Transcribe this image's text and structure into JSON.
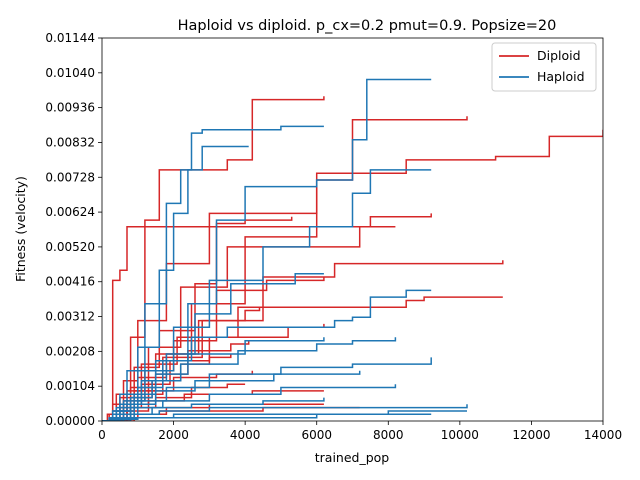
{
  "chart_data": {
    "type": "line",
    "title": "Haploid vs diploid. p_cx=0.2 pmut=0.9. Popsize=20",
    "xlabel": "trained_pop",
    "ylabel": "Fitness (velocity)",
    "xlim": [
      0,
      14000
    ],
    "ylim": [
      0,
      0.01144
    ],
    "xticks": [
      0,
      2000,
      4000,
      6000,
      8000,
      10000,
      12000,
      14000
    ],
    "xtick_labels": [
      "0",
      "2000",
      "4000",
      "6000",
      "8000",
      "10000",
      "12000",
      "14000"
    ],
    "yticks": [
      0,
      0.00104,
      0.00208,
      0.00312,
      0.00416,
      0.0052,
      0.00624,
      0.00728,
      0.00832,
      0.00936,
      0.0104,
      0.01144
    ],
    "ytick_labels": [
      "0.00000",
      "0.00104",
      "0.00208",
      "0.00312",
      "0.00416",
      "0.00520",
      "0.00624",
      "0.00728",
      "0.00832",
      "0.00936",
      "0.01040",
      "0.01144"
    ],
    "legend_position": "top-right",
    "colors": {
      "Diploid": "#d62728",
      "Haploid": "#1f77b4"
    },
    "series": [
      {
        "name": "Diploid",
        "values": [
          [
            0,
            0
          ],
          [
            150,
            0.0002
          ],
          [
            300,
            0.0042
          ],
          [
            500,
            0.0045
          ],
          [
            700,
            0.0058
          ],
          [
            8200,
            0.0058
          ]
        ]
      },
      {
        "name": "Diploid",
        "values": [
          [
            0,
            0
          ],
          [
            400,
            0.0008
          ],
          [
            800,
            0.0025
          ],
          [
            1200,
            0.006
          ],
          [
            1600,
            0.0075
          ],
          [
            3500,
            0.0078
          ],
          [
            4200,
            0.0096
          ],
          [
            6200,
            0.0097
          ]
        ]
      },
      {
        "name": "Diploid",
        "values": [
          [
            0,
            0
          ],
          [
            600,
            0.0012
          ],
          [
            1000,
            0.003
          ],
          [
            1800,
            0.0047
          ],
          [
            3000,
            0.0062
          ],
          [
            6000,
            0.0072
          ],
          [
            7000,
            0.009
          ],
          [
            10200,
            0.0091
          ]
        ]
      },
      {
        "name": "Diploid",
        "values": [
          [
            0,
            0
          ],
          [
            800,
            0.001
          ],
          [
            1500,
            0.002
          ],
          [
            2500,
            0.0035
          ],
          [
            4000,
            0.0055
          ],
          [
            6000,
            0.0074
          ],
          [
            8500,
            0.0078
          ],
          [
            11000,
            0.0079
          ],
          [
            12500,
            0.0085
          ],
          [
            14000,
            0.0087
          ]
        ]
      },
      {
        "name": "Diploid",
        "values": [
          [
            0,
            0
          ],
          [
            700,
            0.0009
          ],
          [
            1300,
            0.0022
          ],
          [
            2200,
            0.004
          ],
          [
            3500,
            0.0052
          ],
          [
            7200,
            0.0058
          ],
          [
            7500,
            0.0061
          ],
          [
            9200,
            0.0062
          ]
        ]
      },
      {
        "name": "Diploid",
        "values": [
          [
            0,
            0
          ],
          [
            900,
            0.0008
          ],
          [
            1700,
            0.0019
          ],
          [
            2800,
            0.003
          ],
          [
            4500,
            0.0043
          ],
          [
            6500,
            0.0047
          ],
          [
            11200,
            0.0048
          ]
        ]
      },
      {
        "name": "Diploid",
        "values": [
          [
            0,
            0
          ],
          [
            500,
            0.0007
          ],
          [
            1100,
            0.0017
          ],
          [
            2100,
            0.0025
          ],
          [
            3800,
            0.0034
          ],
          [
            8500,
            0.0036
          ],
          [
            9000,
            0.0037
          ],
          [
            11200,
            0.0037
          ]
        ]
      },
      {
        "name": "Diploid",
        "values": [
          [
            0,
            0
          ],
          [
            300,
            0.0005
          ],
          [
            900,
            0.0016
          ],
          [
            1600,
            0.0027
          ],
          [
            2600,
            0.0041
          ],
          [
            3200,
            0.0059
          ],
          [
            4000,
            0.006
          ],
          [
            5300,
            0.0061
          ]
        ]
      },
      {
        "name": "Diploid",
        "values": [
          [
            0,
            0
          ],
          [
            600,
            0.0006
          ],
          [
            1200,
            0.0015
          ],
          [
            2000,
            0.0024
          ],
          [
            3200,
            0.0039
          ],
          [
            4600,
            0.0042
          ],
          [
            6200,
            0.0043
          ]
        ]
      },
      {
        "name": "Diploid",
        "values": [
          [
            0,
            0
          ],
          [
            400,
            0.0005
          ],
          [
            1000,
            0.0013
          ],
          [
            1800,
            0.002
          ],
          [
            2700,
            0.003
          ],
          [
            4000,
            0.0033
          ],
          [
            4400,
            0.0034
          ]
        ]
      },
      {
        "name": "Diploid",
        "values": [
          [
            0,
            0
          ],
          [
            500,
            0.0004
          ],
          [
            1100,
            0.0011
          ],
          [
            1900,
            0.0018
          ],
          [
            3000,
            0.0025
          ],
          [
            5200,
            0.0028
          ],
          [
            6200,
            0.0029
          ]
        ]
      },
      {
        "name": "Diploid",
        "values": [
          [
            0,
            0
          ],
          [
            400,
            0.0003
          ],
          [
            900,
            0.0009
          ],
          [
            1500,
            0.0014
          ],
          [
            2400,
            0.0021
          ],
          [
            3600,
            0.0023
          ],
          [
            4100,
            0.0024
          ]
        ]
      },
      {
        "name": "Diploid",
        "values": [
          [
            0,
            0
          ],
          [
            300,
            0.0003
          ],
          [
            800,
            0.0007
          ],
          [
            1400,
            0.0012
          ],
          [
            2200,
            0.0017
          ],
          [
            3000,
            0.0019
          ],
          [
            3600,
            0.002
          ]
        ]
      },
      {
        "name": "Diploid",
        "values": [
          [
            0,
            0
          ],
          [
            200,
            0.0002
          ],
          [
            700,
            0.0005
          ],
          [
            1300,
            0.0009
          ],
          [
            2000,
            0.0013
          ],
          [
            3200,
            0.0014
          ],
          [
            4200,
            0.0015
          ]
        ]
      },
      {
        "name": "Diploid",
        "values": [
          [
            0,
            0
          ],
          [
            300,
            0.0002
          ],
          [
            800,
            0.0004
          ],
          [
            1500,
            0.0007
          ],
          [
            2500,
            0.001
          ],
          [
            3500,
            0.0011
          ],
          [
            4000,
            0.0011
          ]
        ]
      },
      {
        "name": "Diploid",
        "values": [
          [
            0,
            0
          ],
          [
            200,
            0.0001
          ],
          [
            700,
            0.0003
          ],
          [
            1300,
            0.0006
          ],
          [
            2300,
            0.0008
          ],
          [
            4200,
            0.0009
          ],
          [
            6200,
            0.0009
          ]
        ]
      },
      {
        "name": "Diploid",
        "values": [
          [
            0,
            0
          ],
          [
            400,
            0.0001
          ],
          [
            1000,
            0.0002
          ],
          [
            1800,
            0.0004
          ],
          [
            3000,
            0.0005
          ],
          [
            5000,
            0.0005
          ],
          [
            6200,
            0.0005
          ]
        ]
      },
      {
        "name": "Diploid",
        "values": [
          [
            0,
            0
          ],
          [
            300,
            0.0001
          ],
          [
            900,
            0.0002
          ],
          [
            1600,
            0.0003
          ],
          [
            2500,
            0.0003
          ],
          [
            4500,
            0.0004
          ],
          [
            7200,
            0.0004
          ]
        ]
      },
      {
        "name": "Haploid",
        "values": [
          [
            0,
            0
          ],
          [
            300,
            0.0003
          ],
          [
            700,
            0.0015
          ],
          [
            1200,
            0.0035
          ],
          [
            1800,
            0.0065
          ],
          [
            2200,
            0.0075
          ],
          [
            2500,
            0.0086
          ],
          [
            2800,
            0.0087
          ],
          [
            4000,
            0.0087
          ],
          [
            5000,
            0.0088
          ],
          [
            6200,
            0.0088
          ]
        ]
      },
      {
        "name": "Haploid",
        "values": [
          [
            0,
            0
          ],
          [
            500,
            0.0008
          ],
          [
            1000,
            0.0022
          ],
          [
            1600,
            0.0045
          ],
          [
            2000,
            0.0062
          ],
          [
            2400,
            0.0075
          ],
          [
            2800,
            0.0082
          ],
          [
            4100,
            0.0082
          ]
        ]
      },
      {
        "name": "Haploid",
        "values": [
          [
            0,
            0
          ],
          [
            800,
            0.0005
          ],
          [
            1500,
            0.0018
          ],
          [
            2400,
            0.0035
          ],
          [
            3200,
            0.006
          ],
          [
            4000,
            0.007
          ],
          [
            6000,
            0.0072
          ],
          [
            7000,
            0.0084
          ],
          [
            7400,
            0.0086
          ],
          [
            7400,
            0.0102
          ],
          [
            9200,
            0.0102
          ]
        ]
      },
      {
        "name": "Haploid",
        "values": [
          [
            0,
            0
          ],
          [
            600,
            0.0006
          ],
          [
            1200,
            0.0015
          ],
          [
            2000,
            0.0028
          ],
          [
            3000,
            0.0042
          ],
          [
            4500,
            0.0052
          ],
          [
            5800,
            0.0058
          ],
          [
            7000,
            0.0068
          ],
          [
            7500,
            0.0075
          ],
          [
            9200,
            0.0075
          ]
        ]
      },
      {
        "name": "Haploid",
        "values": [
          [
            0,
            0
          ],
          [
            500,
            0.0005
          ],
          [
            1100,
            0.0012
          ],
          [
            1800,
            0.002
          ],
          [
            2600,
            0.0032
          ],
          [
            3600,
            0.0041
          ],
          [
            5400,
            0.0044
          ],
          [
            6200,
            0.0044
          ]
        ]
      },
      {
        "name": "Haploid",
        "values": [
          [
            0,
            0
          ],
          [
            400,
            0.0004
          ],
          [
            1000,
            0.001
          ],
          [
            1700,
            0.0018
          ],
          [
            2500,
            0.0025
          ],
          [
            3500,
            0.0028
          ],
          [
            6500,
            0.003
          ],
          [
            7000,
            0.0031
          ],
          [
            7500,
            0.0037
          ],
          [
            8500,
            0.0039
          ],
          [
            9200,
            0.0039
          ]
        ]
      },
      {
        "name": "Haploid",
        "values": [
          [
            0,
            0
          ],
          [
            400,
            0.0003
          ],
          [
            900,
            0.0008
          ],
          [
            1500,
            0.0014
          ],
          [
            2400,
            0.002
          ],
          [
            4000,
            0.0024
          ],
          [
            6200,
            0.0025
          ]
        ]
      },
      {
        "name": "Haploid",
        "values": [
          [
            0,
            0
          ],
          [
            300,
            0.0003
          ],
          [
            800,
            0.0007
          ],
          [
            1400,
            0.0012
          ],
          [
            2200,
            0.0017
          ],
          [
            3800,
            0.0021
          ],
          [
            6000,
            0.0023
          ],
          [
            7000,
            0.0024
          ],
          [
            8200,
            0.0025
          ]
        ]
      },
      {
        "name": "Haploid",
        "values": [
          [
            0,
            0
          ],
          [
            400,
            0.0002
          ],
          [
            1000,
            0.0006
          ],
          [
            1800,
            0.001
          ],
          [
            3000,
            0.0014
          ],
          [
            5000,
            0.0016
          ],
          [
            7000,
            0.0017
          ],
          [
            9200,
            0.0019
          ]
        ]
      },
      {
        "name": "Haploid",
        "values": [
          [
            0,
            0
          ],
          [
            300,
            0.0002
          ],
          [
            800,
            0.0005
          ],
          [
            1500,
            0.0009
          ],
          [
            2600,
            0.0012
          ],
          [
            4800,
            0.0014
          ],
          [
            7200,
            0.0015
          ]
        ]
      },
      {
        "name": "Haploid",
        "values": [
          [
            0,
            0
          ],
          [
            300,
            0.0001
          ],
          [
            900,
            0.0004
          ],
          [
            1700,
            0.0006
          ],
          [
            3000,
            0.0008
          ],
          [
            5000,
            0.001
          ],
          [
            8200,
            0.0011
          ]
        ]
      },
      {
        "name": "Haploid",
        "values": [
          [
            0,
            0
          ],
          [
            200,
            0.0001
          ],
          [
            700,
            0.0002
          ],
          [
            1400,
            0.0004
          ],
          [
            2500,
            0.0005
          ],
          [
            4500,
            0.0006
          ],
          [
            6200,
            0.0007
          ]
        ]
      },
      {
        "name": "Haploid",
        "values": [
          [
            0,
            0
          ],
          [
            300,
            0.0001
          ],
          [
            800,
            0.0002
          ],
          [
            1600,
            0.0003
          ],
          [
            3000,
            0.0004
          ],
          [
            6000,
            0.0004
          ],
          [
            10200,
            0.0005
          ]
        ]
      },
      {
        "name": "Haploid",
        "values": [
          [
            0,
            0
          ],
          [
            300,
            0.0001
          ],
          [
            900,
            0.0001
          ],
          [
            2000,
            0.0002
          ],
          [
            4000,
            0.0002
          ],
          [
            8000,
            0.0003
          ],
          [
            10200,
            0.0003
          ]
        ]
      },
      {
        "name": "Haploid",
        "values": [
          [
            0,
            0
          ],
          [
            200,
            5e-05
          ],
          [
            1000,
            0.0001
          ],
          [
            3000,
            0.0001
          ],
          [
            6000,
            0.0002
          ],
          [
            9200,
            0.0002
          ]
        ]
      }
    ]
  }
}
